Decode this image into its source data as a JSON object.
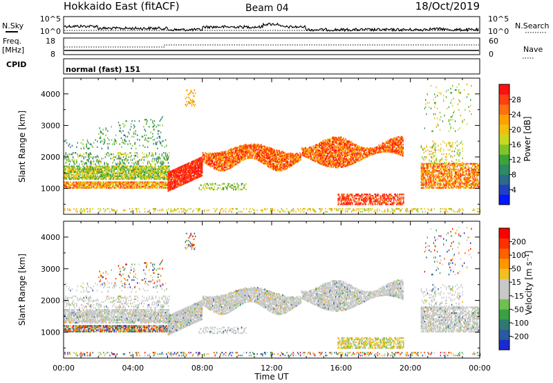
{
  "header": {
    "radar": "Hokkaido East (fitACF)",
    "beam": "Beam 04",
    "date": "18/Oct/2019"
  },
  "strip_labels": {
    "nsky": "N.Sky",
    "nsky_hi": "10^5",
    "nsky_lo": "10^0",
    "nsearch": "N.Search",
    "freq_line1": "Freq.",
    "freq_line2": "[MHz]",
    "freq_hi": "18",
    "freq_lo": "8",
    "nave": "Nave",
    "nave_hi": "60",
    "nave_lo": "0",
    "cpid": "CPID",
    "cpid_value": "normal (fast) 151"
  },
  "chart_data": [
    {
      "type": "heatmap",
      "name_panel": "power",
      "ylabel": "Slant Range [km]",
      "xlabel": "Time UT",
      "x_ticks": [
        "00:00",
        "04:00",
        "08:00",
        "12:00",
        "16:00",
        "20:00",
        "00:00"
      ],
      "y_ticks": [
        "1000",
        "2000",
        "3000",
        "4000"
      ],
      "ylim": [
        180,
        4500
      ],
      "xlim_hours": [
        0,
        24
      ],
      "colorbar": {
        "label": "Power [dB]",
        "ticks": [
          "4",
          "8",
          "12",
          "16",
          "20",
          "24",
          "28"
        ],
        "range": [
          0,
          32
        ],
        "colors": [
          "#0018ff",
          "#2040c0",
          "#2c6a8c",
          "#2e8a62",
          "#3aa33a",
          "#7ec42a",
          "#c8d820",
          "#f0c010",
          "#ffa000",
          "#ff7010",
          "#ff4010",
          "#ff1010"
        ]
      }
    },
    {
      "type": "heatmap",
      "name_panel": "velocity",
      "ylabel": "Slant Range [km]",
      "xlabel": "Time UT",
      "x_ticks": [
        "00:00",
        "04:00",
        "08:00",
        "12:00",
        "16:00",
        "20:00",
        "00:00"
      ],
      "y_ticks": [
        "1000",
        "2000",
        "3000",
        "4000"
      ],
      "ylim": [
        180,
        4500
      ],
      "xlim_hours": [
        0,
        24
      ],
      "colorbar": {
        "label": "Velocity [m s⁻¹]",
        "ticks": [
          "200",
          "100",
          "50",
          "15",
          "-15",
          "-50",
          "-100",
          "-200"
        ],
        "colors": [
          "#1a2ad0",
          "#2a5aa0",
          "#2f7a70",
          "#3aa046",
          "#70c050",
          "#c8c8c8",
          "#c8c8c8",
          "#f0c020",
          "#ff9800",
          "#ff6000",
          "#ff3000",
          "#ff0000"
        ]
      }
    }
  ]
}
